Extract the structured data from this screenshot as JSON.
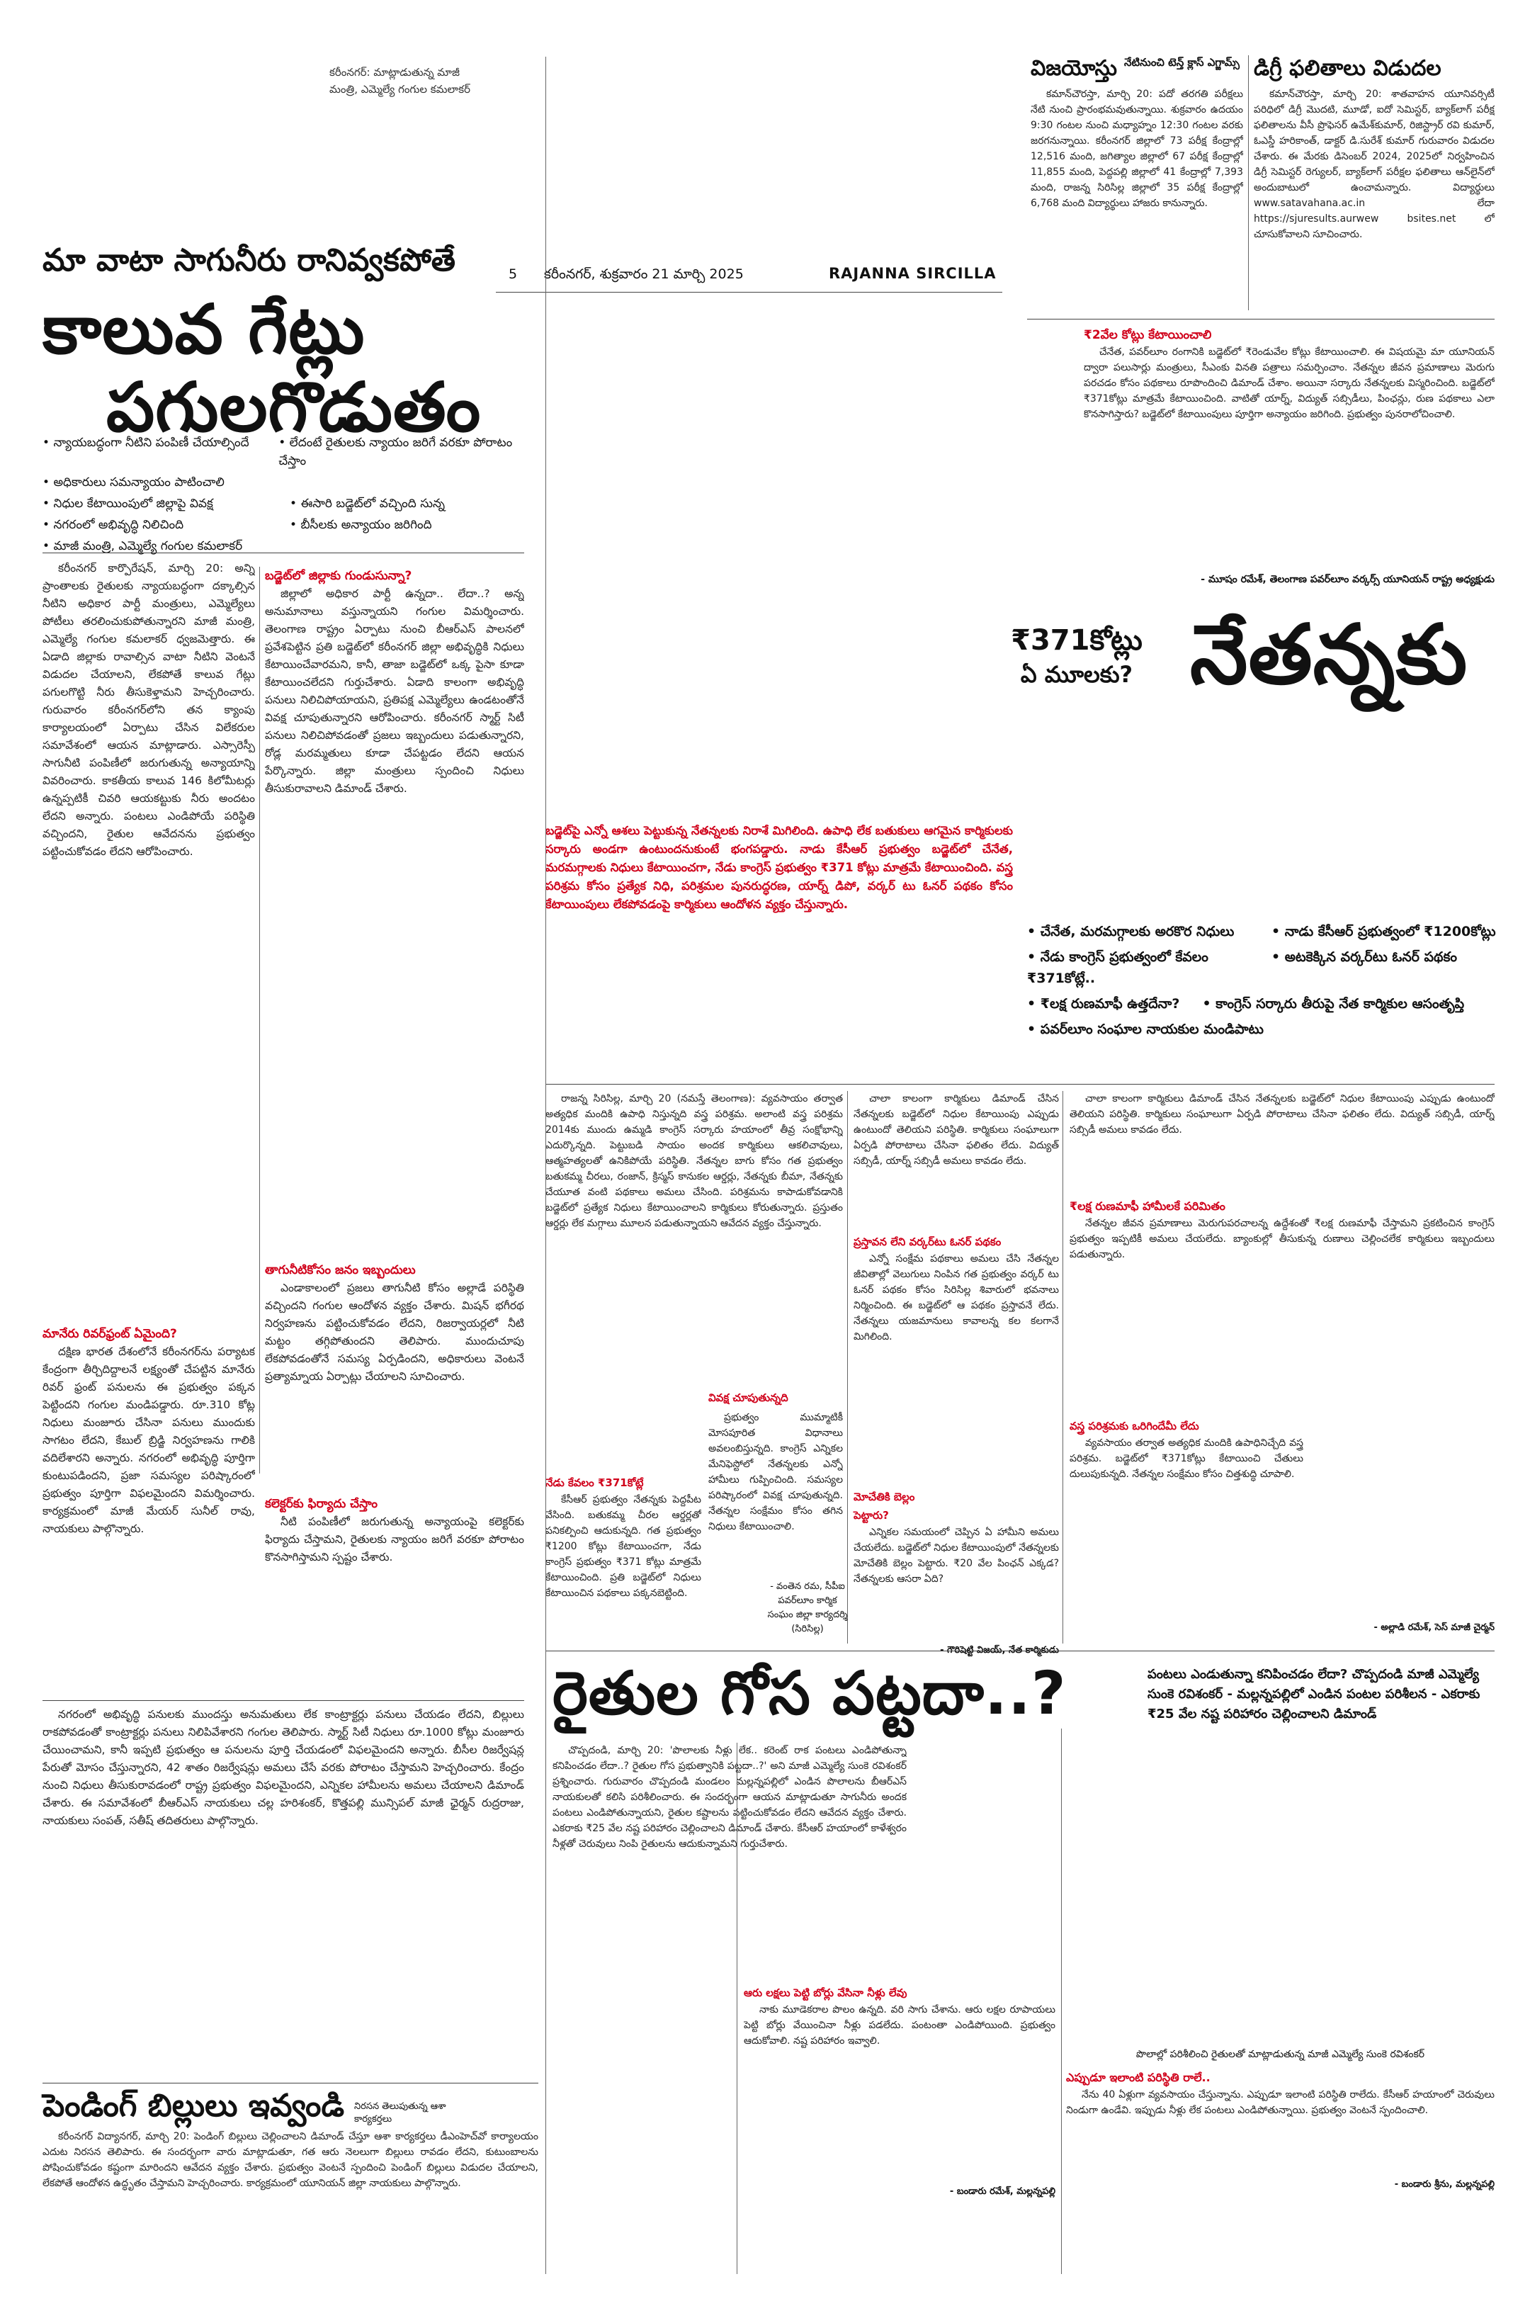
{
  "top_caption": {
    "line1": "కరీంనగర్: మాట్లాడుతున్న మాజీ",
    "line2": "మంత్రి, ఎమ్మెల్యే గంగుల కమలాకర్"
  },
  "masthead": {
    "page_no": "5",
    "dateline": "కరీంనగర్, శుక్రవారం 21 మార్చి 2025",
    "edition": "RAJANNA SIRCILLA"
  },
  "lead": {
    "kicker": "మా వాటా సాగునీరు రానివ్వకపోతే",
    "headline1": "కాలువ గేట్లు",
    "headline2": "పగులగొడుతం",
    "bullets": [
      "న్యాయబద్ధంగా నీటిని పంపిణీ చేయాల్సిందే",
      "లేదంటే రైతులకు న్యాయం జరిగే వరకూ పోరాటం చేస్తాం",
      "అధికారులు సమన్యాయం పాటించాలి",
      "నిధుల కేటాయింపులో జిల్లాపై వివక్ష",
      "ఈసారి బడ్జెట్‌లో వచ్చింది సున్న",
      "నగరంలో అభివృద్ధి నిలిచింది",
      "బీసీలకు అన్యాయం జరిగింది",
      "మాజీ మంత్రి, ఎమ్మెల్యే గంగుల కమలాకర్"
    ],
    "col1": "కరీంనగర్ కార్పొరేషన్, మార్చి 20: అన్ని ప్రాంతాలకు రైతులకు న్యాయబద్ధంగా దక్కాల్సిన నీటిని అధికార పార్టీ మంత్రులు, ఎమ్మెల్యేలు పోటీలు తరలించుకుపోతున్నారని మాజీ మంత్రి, ఎమ్మెల్యే గంగుల కమలాకర్ ధ్వజమెత్తారు. ఈ ఏడాది జిల్లాకు రావాల్సిన వాటా నీటిని వెంటనే విడుదల చేయాలని, లేకపోతే కాలువ గేట్లు పగులగొట్టి నీరు తీసుకెళ్తామని హెచ్చరించారు. గురువారం కరీంనగర్‌లోని తన క్యాంపు కార్యాలయంలో ఏర్పాటు చేసిన విలేకరుల సమావేశంలో ఆయన మాట్లాడారు. ఎస్సారెస్పీ సాగునీటి పంపిణీలో జరుగుతున్న అన్యాయాన్ని వివరించారు. కాకతీయ కాలువ 146 కిలోమీటర్లు ఉన్నప్పటికీ చివరి ఆయకట్టుకు నీరు అందటం లేదని అన్నారు. పంటలు ఎండిపోయే పరిస్థితి వచ్చిందని, రైతుల ఆవేదనను ప్రభుత్వం పట్టించుకోవడం లేదని ఆరోపించారు.",
    "col2_head": "బడ్జెట్‌లో జిల్లాకు గుండుసున్నా?",
    "col2": "జిల్లాలో అధికార పార్టీ ఉన్నదా.. లేదా..? అన్న అనుమానాలు వస్తున్నాయని గంగుల విమర్శించారు. తెలంగాణ రాష్ట్రం ఏర్పాటు నుంచి బీఆర్‌ఎస్ పాలనలో ప్రవేశపెట్టిన ప్రతి బడ్జెట్‌లో కరీంనగర్ జిల్లా అభివృద్ధికి నిధులు కేటాయించేవారమని, కానీ, తాజా బడ్జెట్‌లో ఒక్క పైసా కూడా కేటాయించలేదని గుర్తుచేశారు. ఏడాది కాలంగా అభివృద్ధి పనులు నిలిచిపోయాయని, ప్రతిపక్ష ఎమ్మెల్యేలు ఉండటంతోనే వివక్ష చూపుతున్నారని ఆరోపించారు. కరీంనగర్ స్మార్ట్ సిటీ పనులు నిలిచిపోవడంతో ప్రజలు ఇబ్బందులు పడుతున్నారని, రోడ్ల మరమ్మతులు కూడా చేపట్టడం లేదని ఆయన పేర్కొన్నారు. జిల్లా మంత్రులు స్పందించి నిధులు తీసుకురావాలని డిమాండ్ చేశారు.",
    "sub_manair": "మానేరు రివర్‌ఫ్రంట్ ఏమైంది?",
    "col3": "దక్షిణ భారత దేశంలోనే కరీంనగర్‌ను పర్యాటక కేంద్రంగా తీర్చిదిద్దాలనే లక్ష్యంతో చేపట్టిన మానేరు రివర్ ఫ్రంట్ పనులను ఈ ప్రభుత్వం పక్కన పెట్టిందని గంగుల మండిపడ్డారు. రూ.310 కోట్ల నిధులు మంజూరు చేసినా పనులు ముందుకు సాగటం లేదని, కేబుల్ బ్రిడ్జి నిర్వహణను గాలికి వదిలేశారని అన్నారు. నగరంలో అభివృద్ధి పూర్తిగా కుంటుపడిందని, ప్రజా సమస్యల పరిష్కారంలో ప్రభుత్వం పూర్తిగా విఫలమైందని విమర్శించారు. కార్యక్రమంలో మాజీ మేయర్ సునీల్ రావు, నాయకులు పాల్గొన్నారు.",
    "sub_tank": "తాగునీటికోసం జనం ఇబ్బందులు",
    "col4": "ఎండాకాలంలో ప్రజలు తాగునీటి కోసం అల్లాడే పరిస్థితి వచ్చిందని గంగుల ఆందోళన వ్యక్తం చేశారు. మిషన్ భగీరథ నిర్వహణను పట్టించుకోవడం లేదని, రిజర్వాయర్లలో నీటి మట్టం తగ్గిపోతుందని తెలిపారు. ముందుచూపు లేకపోవడంతోనే సమస్య ఏర్పడిందని, అధికారులు వెంటనే ప్రత్యామ్నాయ ఏర్పాట్లు చేయాలని సూచించారు.",
    "sub_collector": "కలెక్టర్‌కు ఫిర్యాదు చేస్తాం",
    "col5": "నీటి పంపిణీలో జరుగుతున్న అన్యాయంపై కలెక్టర్‌కు ఫిర్యాదు చేస్తామని, రైతులకు న్యాయం జరిగే వరకూ పోరాటం కొనసాగిస్తామని స్పష్టం చేశారు.",
    "bottom": "నగరంలో అభివృద్ధి పనులకు ముందస్తు అనుమతులు లేక కాంట్రాక్టర్లు పనులు చేయడం లేదని, బిల్లులు రాకపోవడంతో కాంట్రాక్టర్లు పనులు నిలిపివేశారని గంగుల తెలిపారు. స్మార్ట్ సిటీ నిధులు రూ.1000 కోట్లు మంజూరు చేయించామని, కానీ ఇప్పటి ప్రభుత్వం ఆ పనులను పూర్తి చేయడంలో విఫలమైందని అన్నారు. బీసీల రిజర్వేషన్ల పేరుతో మోసం చేస్తున్నారని, 42 శాతం రిజర్వేషన్లు అమలు చేసే వరకు పోరాటం చేస్తామని హెచ్చరించారు. కేంద్రం నుంచి నిధులు తీసుకురావడంలో రాష్ట్ర ప్రభుత్వం విఫలమైందని, ఎన్నికల హామీలను అమలు చేయాలని డిమాండ్ చేశారు. ఈ సమావేశంలో బీఆర్‌ఎస్ నాయకులు చల్ల హరిశంకర్, కొత్తపల్లి మున్సిపల్ మాజీ ఛైర్మన్ రుద్రరాజు, నాయకులు సంపత్, సతీష్ తదితరులు పాల్గొన్నారు."
  },
  "vijayotsu": {
    "title": "విజయోస్తు",
    "tag": "నేటినుంచి టెన్త్ క్లాస్ ఎగ్జామ్స్",
    "body": "కమాన్‌చౌరస్తా, మార్చి 20: పదో తరగతి పరీక్షలు నేటి నుంచి ప్రారంభమవుతున్నాయి. శుక్రవారం ఉదయం 9:30 గంటల నుంచి మధ్యాహ్నం 12:30 గంటల వరకు జరగనున్నాయి. కరీంనగర్ జిల్లాలో 73 పరీక్ష కేంద్రాల్లో 12,516 మంది, జగిత్యాల జిల్లాలో 67 పరీక్ష కేంద్రాల్లో 11,855 మంది, పెద్దపల్లి జిల్లాలో 41 కేంద్రాల్లో 7,393 మంది, రాజన్న సిరిసిల్ల జిల్లాలో 35 పరీక్ష కేంద్రాల్లో 6,768 మంది విద్యార్థులు హాజరు కానున్నారు."
  },
  "degree": {
    "title": "డిగ్రీ ఫలితాలు విడుదల",
    "body": "కమాన్‌చౌరస్తా, మార్చి 20: శాతవాహన యూనివర్సిటీ పరిధిలో డిగ్రీ మొదటి, మూడో, ఐదో సెమిస్టర్, బ్యాక్‌లాగ్ పరీక్ష ఫలితాలను వీసీ ప్రొఫెసర్ ఉమేశ్‌కుమార్, రిజిస్ట్రార్ రవి కుమార్, ఓఎస్డీ హరికాంత్, డాక్టర్ డి.సురేశ్ కుమార్ గురువారం విడుదల చేశారు. ఈ మేరకు డిసెంబర్ 2024, 2025లో నిర్వహించిన డిగ్రీ సెమిస్టర్ రెగ్యులర్, బ్యాక్‌లాగ్ పరీక్షల ఫలితాలు ఆన్‌లైన్‌లో అందుబాటులో ఉంచామన్నారు. విద్యార్థులు www.satavahana.ac.in లేదా https://sjuresults.aurwew bsites.net లో చూసుకోవాలని సూచించారు."
  },
  "nethanna": {
    "top_sub": "₹2వేల కోట్లు కేటాయించాలి",
    "top_body": "చేనేత, పవర్‌లూం రంగానికి బడ్జెట్‌లో ₹రెండువేల కోట్లు కేటాయించాలి. ఈ విషయమై మా యూనియన్ ద్వారా పలుసార్లు మంత్రులు, సీఎంకు వినతి పత్రాలు సమర్పించాం. నేతన్నల జీవన ప్రమాణాలు మెరుగు పరచడం కోసం పథకాలు రూపొందించి డిమాండ్ చేశాం. అయినా సర్కారు నేతన్నలకు విస్మరించింది. బడ్జెట్‌లో ₹371కోట్లు మాత్రమే కేటాయించింది. వాటితో యార్న్, విద్యుత్ సబ్సిడీలు, పింఛన్లు, రుణ పథకాలు ఎలా కొనసాగిస్తారు? బడ్జెట్‌లో కేటాయింపులు పూర్తిగా అన్యాయం జరిగింది. ప్రభుత్వం పునరాలోచించాలి.",
    "top_sig": "- మూషం రమేశ్, తెలంగాణ పవర్‌లూం వర్కర్స్ యూనియన్ రాష్ట్ర అధ్యక్షుడు",
    "amount_line1": "₹371కోట్లు",
    "amount_line2": "ఏ మూలకు?",
    "huge": "నేతన్నకు",
    "red_intro": "బడ్జెట్‌పై ఎన్నో ఆశలు పెట్టుకున్న నేతన్నలకు నిరాశే మిగిలింది. ఉపాధి లేక బతుకులు ఆగమైన కార్మికులకు సర్కారు అండగా ఉంటుందనుకుంటే భంగపడ్డారు. నాడు కేసీఆర్ ప్రభుత్వం బడ్జెట్‌లో చేనేత, మరమగ్గాలకు నిధులు కేటాయించగా, నేడు కాంగ్రెస్ ప్రభుత్వం ₹371 కోట్లు మాత్రమే కేటాయించింది. వస్త్ర పరిశ్రమ కోసం ప్రత్యేక నిధి, పరిశ్రమల పునరుద్ధరణ, యార్న్ డిపో, వర్కర్ టు ఓనర్ పథకం కోసం కేటాయింపులు లేకపోవడంపై కార్మికులు ఆందోళన వ్యక్తం చేస్తున్నారు.",
    "bullets_head": [
      "చేనేత, మరమగ్గాలకు అరకొర నిధులు",
      "నాడు కేసీఆర్ ప్రభుత్వంలో ₹1200కోట్లు",
      "నేడు కాంగ్రెస్ ప్రభుత్వంలో కేవలం ₹371కోట్లే..",
      "అటకెక్కిన వర్కర్‌టు ఓనర్ పథకం",
      "₹లక్ష రుణమాఫీ ఉత్తదేనా?",
      "కాంగ్రెస్ సర్కారు తీరుపై నేత కార్మికుల ఆసంతృప్తి",
      "పవర్‌లూం సంఘాల నాయకుల మండిపాటు"
    ],
    "col1": "రాజన్న సిరిసిల్ల, మార్చి 20 (నమస్తే తెలంగాణ): వ్యవసాయం తర్వాత అత్యధిక మందికి ఉపాధి నిస్తున్నది వస్త్ర పరిశ్రమ. అలాంటి వస్త్ర పరిశ్రమ 2014కు ముందు ఉమ్మడి కాంగ్రెస్ సర్కారు హయాంలో తీవ్ర సంక్షోభాన్ని ఎదుర్కొన్నది. పెట్టుబడి సాయం అందక కార్మికులు ఆకలిచావులు, ఆత్మహత్యలతో ఉనికిపోయే పరిస్థితి. నేతన్నల బాగు కోసం గత ప్రభుత్వం బతుకమ్మ చీరలు, రంజాన్, క్రిస్మస్ కానుకల ఆర్డర్లు, నేతన్నకు బీమా, నేతన్నకు చేయూత వంటి పథకాలు అమలు చేసింది. పరిశ్రమను కాపాడుకోవడానికి బడ్జెట్‌లో ప్రత్యేక నిధులు కేటాయించాలని కార్మికులు కోరుతున్నారు. ప్రస్తుతం ఆర్డర్లు లేక మగ్గాలు మూలన పడుతున్నాయని ఆవేదన వ్యక్తం చేస్తున్నారు.",
    "sub_vivaksha": "వివక్ష చూపుతున్నది",
    "col2": "ప్రభుత్వం ముమ్మాటికీ మోసపూరిత విధానాలు అవలంబిస్తున్నది. కాంగ్రెస్ ఎన్నికల మేనిఫెస్టోలో నేతన్నలకు ఎన్నో హామీలు గుప్పించింది. సమస్యల పరిష్కారంలో వివక్ష చూపుతున్నది. నేతన్నల సంక్షేమం కోసం తగిన నిధులు కేటాయించాలి.",
    "sig1": "- వంతెన రమ, సీపీఐ పవర్‌లూం కార్మిక సంఘం జిల్లా కార్యదర్శి (సిరిసిల్ల)",
    "sub_nedu": "నేడు కేవలం ₹371కోట్లే",
    "col3": "కేసీఆర్ ప్రభుత్వం నేతన్నకు పెద్దపీట వేసింది. బతుకమ్మ చీరల ఆర్డర్లతో పనికల్పించి ఆదుకున్నది. గత ప్రభుత్వం ₹1200 కోట్లు కేటాయించగా, నేడు కాంగ్రెస్ ప్రభుత్వం ₹371 కోట్లు మాత్రమే కేటాయించింది. ప్రతి బడ్జెట్‌లో నిధులు కేటాయించిన పథకాలు పక్కనబెట్టింది.",
    "col4_head": "ప్రస్తావన లేని వర్కర్‌టు ఓనర్ పథకం",
    "col4": "ఎన్నో సంక్షేమ పథకాలు అమలు చేసి నేతన్నల జీవితాల్లో వెలుగులు నింపిన గత ప్రభుత్వం వర్కర్ టు ఓనర్ పథకం కోసం సిరిసిల్ల శివారులో భవనాలు నిర్మించింది. ఈ బడ్జెట్‌లో ఆ పథకం ప్రస్తావనే లేదు. నేతన్నలు యజమానులు కావాలన్న కల కలగానే మిగిలింది.",
    "sub_mocheti": "మోచేతికి బెల్లం పెట్టారు?",
    "col5": "ఎన్నికల సమయంలో చెప్పిన ఏ హామీని అమలు చేయలేదు. బడ్జెట్‌లో నిధుల కేటాయింపులో నేతన్నలకు మోచేతికి బెల్లం పెట్టారు. ₹20 వేల పింఛన్ ఎక్కడ? నేతన్నలకు ఆసరా ఏది?",
    "sig2": "- గౌరిషెట్టి విజయ్, నేత కార్మికుడు",
    "col6": "చాలా కాలంగా కార్మికులు డిమాండ్ చేసిన నేతన్నలకు బడ్జెట్‌లో నిధుల కేటాయింపు ఎప్పుడు ఉంటుందో తెలియని పరిస్థితి. కార్మికులు సంఘాలుగా ఏర్పడి పోరాటాలు చేసినా ఫలితం లేదు. విద్యుత్ సబ్సిడీ, యార్న్ సబ్సిడీ అమలు కావడం లేదు.",
    "sub_loan": "₹లక్ష రుణమాఫీ హామీలకే పరిమితం",
    "col7": "నేతన్నల జీవన ప్రమాణాలు మెరుగుపరచాలన్న ఉద్దేశంతో ₹లక్ష రుణమాఫీ చేస్తామని ప్రకటించిన కాంగ్రెస్ ప్రభుత్వం ఇప్పటికీ అమలు చేయలేదు. బ్యాంకుల్లో తీసుకున్న రుణాలు చెల్లించలేక కార్మికులు ఇబ్బందులు పడుతున్నారు.",
    "sub_vastra": "వస్త్ర పరిశ్రమకు ఒరిగిందేమీ లేదు",
    "col8": "వ్యవసాయం తర్వాత అత్యధిక మందికి ఉపాధినిచ్చేది వస్త్ర పరిశ్రమ. బడ్జెట్‌లో ₹371కోట్లు కేటాయించి చేతులు దులుపుకున్నది. నేతన్నల సంక్షేమం కోసం చిత్తశుద్ధి చూపాలి.",
    "sig3": "- అల్లాడి రమేశ్, సెస్ మాజీ చైర్మన్"
  },
  "farmers": {
    "headline": "రైతుల గోస పట్టదా..?",
    "deck": "పంటలు ఎండుతున్నా కనిపించడం లేదా? చొప్పదండి మాజీ ఎమ్మెల్యే సుంకె రవిశంకర్ - మల్లన్నపల్లిలో ఎండిన పంటల పరిశీలన - ఎకరాకు ₹25 వేల నష్ట పరిహారం చెల్లించాలని డిమాండ్",
    "body": "చొప్పదండి, మార్చి 20: 'పొలాలకు నీళ్లు లేక.. కరెంట్ రాక పంటలు ఎండిపోతున్నా కనిపించడం లేదా..? రైతుల గోస ప్రభుత్వానికి పట్టదా..?' అని మాజీ ఎమ్మెల్యే సుంకె రవిశంకర్ ప్రశ్నించారు. గురువారం చొప్పదండి మండలం మల్లన్నపల్లిలో ఎండిన పొలాలను బీఆర్‌ఎస్ నాయకులతో కలిసి పరిశీలించారు. ఈ సందర్భంగా ఆయన మాట్లాడుతూ సాగునీరు అందక పంటలు ఎండిపోతున్నాయని, రైతుల కష్టాలను పట్టించుకోవడం లేదని ఆవేదన వ్యక్తం చేశారు. ఎకరాకు ₹25 వేల నష్ట పరిహారం చెల్లించాలని డిమాండ్ చేశారు. కేసీఆర్ హయాంలో కాళేశ్వరం నీళ్లతో చెరువులు నింపి రైతులను ఆదుకున్నామని గుర్తుచేశారు.",
    "sub_aru": "ఆరు లక్షలు పెట్టి బోర్లు వేసినా నీళ్లు లేవు",
    "body2": "నాకు మూడెకరాల పొలం ఉన్నది. వరి సాగు చేశాను. ఆరు లక్షల రూపాయలు పెట్టి బోర్లు వేయించినా నీళ్లు పడలేదు. పంటంతా ఎండిపోయింది. ప్రభుత్వం ఆదుకోవాలి. నష్ట పరిహారం ఇవ్వాలి.",
    "sig1": "- బండారు రమేశ్, మల్లన్నపల్లి",
    "caption": "పొలాల్లో పరిశీలించి రైతులతో మాట్లాడుతున్న మాజీ ఎమ్మెల్యే సుంకె రవిశంకర్",
    "sub_eppudu": "ఎప్పుడూ ఇలాంటి పరిస్థితి రాలే..",
    "body3": "నేను 40 ఏళ్లుగా వ్యవసాయం చేస్తున్నాను. ఎప్పుడూ ఇలాంటి పరిస్థితి రాలేదు. కేసీఆర్ హయాంలో చెరువులు నిండుగా ఉండేవి. ఇప్పుడు నీళ్లు లేక పంటలు ఎండిపోతున్నాయి. ప్రభుత్వం వెంటనే స్పందించాలి.",
    "sig2": "- బండారు శ్రీను, మల్లన్నపల్లి"
  },
  "pending": {
    "headline": "పెండింగ్ బిల్లులు ఇవ్వండి",
    "aside": "నిరసన తెలుపుతున్న ఆశా కార్యకర్తలు",
    "body": "కరీంనగర్ విద్యానగర్, మార్చి 20: పెండింగ్ బిల్లులు చెల్లించాలని డిమాండ్ చేస్తూ ఆశా కార్యకర్తలు డీఎంహెచ్‌వో కార్యాలయం ఎదుట నిరసన తెలిపారు. ఈ సందర్భంగా వారు మాట్లాడుతూ, గత ఆరు నెలలుగా బిల్లులు రావడం లేదని, కుటుంబాలను పోషించుకోవడం కష్టంగా మారిందని ఆవేదన వ్యక్తం చేశారు. ప్రభుత్వం వెంటనే స్పందించి పెండింగ్ బిల్లులు విడుదల చేయాలని, లేకపోతే ఆందోళన ఉద్ధృతం చేస్తామని హెచ్చరించారు. కార్యక్రమంలో యూనియన్ జిల్లా నాయకులు పాల్గొన్నారు."
  }
}
